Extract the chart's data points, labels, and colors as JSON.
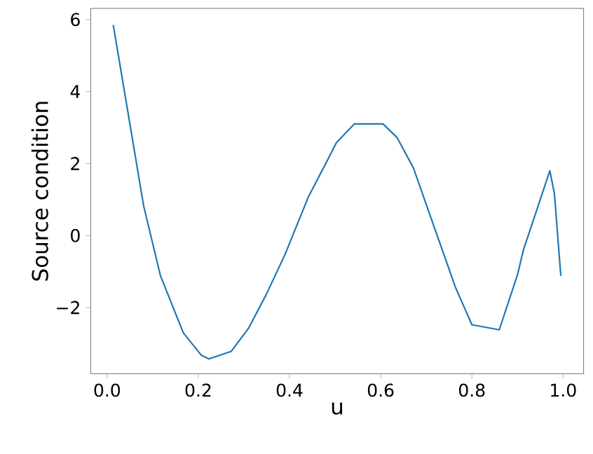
{
  "chart_data": {
    "type": "line",
    "xlabel": "u",
    "ylabel": "Source condition",
    "color": "#1f77b4",
    "grid": false,
    "line_style": "solid",
    "marker": "none",
    "x": [
      0.0135,
      0.049,
      0.08,
      0.117,
      0.167,
      0.206,
      0.223,
      0.272,
      0.31,
      0.349,
      0.39,
      0.442,
      0.482,
      0.503,
      0.542,
      0.605,
      0.636,
      0.672,
      0.708,
      0.764,
      0.8,
      0.86,
      0.9,
      0.913,
      0.971,
      0.981,
      0.995
    ],
    "values": [
      5.85,
      3.17,
      0.83,
      -1.12,
      -2.7,
      -3.32,
      -3.43,
      -3.22,
      -2.58,
      -1.64,
      -0.53,
      1.09,
      2.06,
      2.58,
      3.1,
      3.1,
      2.72,
      1.87,
      0.57,
      -1.44,
      -2.48,
      -2.62,
      -1.09,
      -0.4,
      1.8,
      1.16,
      -1.12
    ],
    "xlim": [
      -0.036,
      1.045
    ],
    "ylim": [
      -3.84,
      6.31
    ],
    "xticks": [
      {
        "value": 0,
        "label": "0.0"
      },
      {
        "value": 0.2,
        "label": "0.2"
      },
      {
        "value": 0.4,
        "label": "0.4"
      },
      {
        "value": 0.6,
        "label": "0.6"
      },
      {
        "value": 0.8,
        "label": "0.8"
      },
      {
        "value": 1.0,
        "label": "1.0"
      }
    ],
    "yticks": [
      {
        "value": -2,
        "label": "−2"
      },
      {
        "value": 0,
        "label": "0"
      },
      {
        "value": 2,
        "label": "2"
      },
      {
        "value": 4,
        "label": "4"
      },
      {
        "value": 6,
        "label": "6"
      }
    ]
  }
}
